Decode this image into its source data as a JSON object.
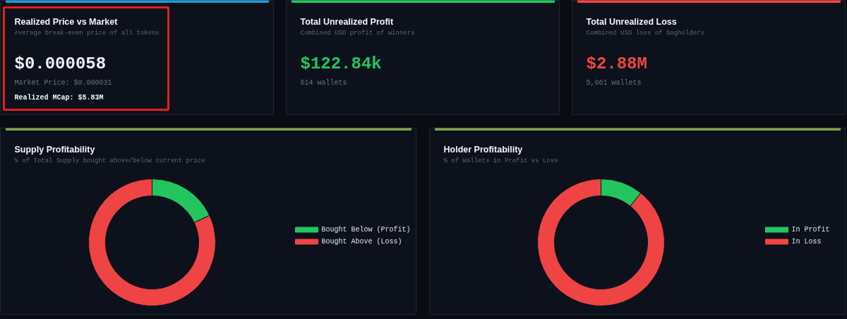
{
  "chart_data": [
    {
      "type": "other",
      "title": "Realized Price vs Market",
      "subtitle": "Average break-even price of all tokens",
      "color": "#eef1f7",
      "annotations": [
        "$0.000058",
        "Market Price: $0.000031",
        "Realized MCap: $5.83M"
      ]
    },
    {
      "type": "other",
      "title": "Total Unrealized Profit",
      "subtitle": "Combined USD profit of winners",
      "color": "#22c55e",
      "annotations": [
        "$122.84k",
        "614 wallets"
      ]
    },
    {
      "type": "other",
      "title": "Total Unrealized Loss",
      "subtitle": "Combined USD loss of bagholders",
      "color": "#ef4444",
      "annotations": [
        "$2.88M",
        "5,061 wallets"
      ]
    },
    {
      "type": "donut",
      "title": "Supply Profitability",
      "subtitle": "% of Total Supply bought above/below current price",
      "categories": [
        "Bought Below (Profit)",
        "Bought Above (Loss)"
      ],
      "values": [
        18,
        82
      ],
      "colors": [
        "#22c55e",
        "#ef4444"
      ],
      "legend": "right"
    },
    {
      "type": "donut",
      "title": "Holder Profitability",
      "subtitle": "% of Wallets in Profit vs Loss",
      "categories": [
        "In Profit",
        "In Loss"
      ],
      "values": [
        10.8,
        89.2
      ],
      "colors": [
        "#22c55e",
        "#ef4444"
      ],
      "legend": "right"
    }
  ]
}
